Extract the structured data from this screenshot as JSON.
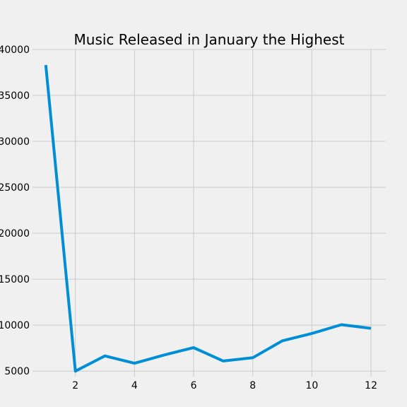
{
  "chart_data": {
    "type": "line",
    "title": "Music Released in January the Highest",
    "xlabel": "",
    "ylabel": "",
    "x": [
      1,
      2,
      3,
      4,
      5,
      6,
      7,
      8,
      9,
      10,
      11,
      12
    ],
    "series": [
      {
        "values": [
          38300,
          5000,
          6650,
          5850,
          6750,
          7550,
          6100,
          6450,
          8300,
          9100,
          10050,
          9650
        ],
        "color": "#008fd5"
      }
    ],
    "xlim": [
      0.55,
      12.5
    ],
    "ylim": [
      4400,
      40000
    ],
    "x_ticks": [
      2,
      4,
      6,
      8,
      10,
      12
    ],
    "y_ticks": [
      5000,
      10000,
      15000,
      20000,
      25000,
      30000,
      35000,
      40000
    ],
    "x_tick_labels": [
      "2",
      "4",
      "6",
      "8",
      "10",
      "12"
    ],
    "y_tick_labels": [
      "5000",
      "10000",
      "15000",
      "20000",
      "25000",
      "30000",
      "35000",
      "40000"
    ],
    "grid": true,
    "style": "fivethirtyeight",
    "background_color": "#f0f0f0",
    "grid_color": "#cbcbcb"
  }
}
